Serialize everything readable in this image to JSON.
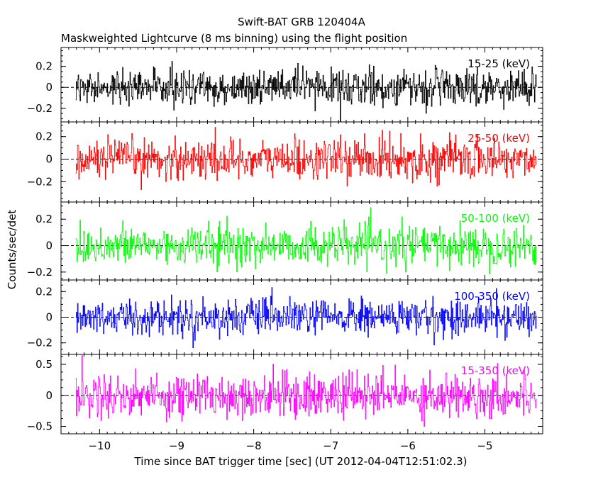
{
  "figure": {
    "title": "Swift-BAT GRB 120404A",
    "subtitle": "Maskweighted Lightcurve (8 ms binning) using the flight position",
    "ylabel": "Counts/sec/det",
    "xlabel": "Time since BAT trigger time [sec] (UT 2012-04-04T12:51:02.3)"
  },
  "chart_data": [
    {
      "type": "line",
      "series": [
        {
          "name": "15-25 (keV)",
          "color": "#000000"
        }
      ],
      "x_range": [
        -10.31,
        -4.33
      ],
      "bin_width": 0.008,
      "xlim": [
        -10.5,
        -4.25
      ],
      "ylim": [
        -0.33,
        0.38
      ],
      "yticks": [
        -0.2,
        0,
        0.2
      ],
      "ytick_labels": [
        "−0.2",
        "0",
        "0.2"
      ],
      "noise_sigma": 0.085,
      "baseline": 0
    },
    {
      "type": "line",
      "series": [
        {
          "name": "25-50 (keV)",
          "color": "#ff0000"
        }
      ],
      "x_range": [
        -10.31,
        -4.33
      ],
      "bin_width": 0.008,
      "xlim": [
        -10.5,
        -4.25
      ],
      "ylim": [
        -0.38,
        0.33
      ],
      "yticks": [
        -0.2,
        0,
        0.2
      ],
      "ytick_labels": [
        "−0.2",
        "0",
        "0.2"
      ],
      "noise_sigma": 0.09,
      "baseline": 0
    },
    {
      "type": "line",
      "series": [
        {
          "name": "50-100 (keV)",
          "color": "#00ff00"
        }
      ],
      "x_range": [
        -10.31,
        -4.33
      ],
      "bin_width": 0.008,
      "xlim": [
        -10.5,
        -4.25
      ],
      "ylim": [
        -0.26,
        0.33
      ],
      "yticks": [
        -0.2,
        0,
        0.2
      ],
      "ytick_labels": [
        "−0.2",
        "0",
        "0.2"
      ],
      "noise_sigma": 0.075,
      "baseline": 0
    },
    {
      "type": "line",
      "series": [
        {
          "name": "100-350 (keV)",
          "color": "#0000ff"
        }
      ],
      "x_range": [
        -10.31,
        -4.33
      ],
      "bin_width": 0.008,
      "xlim": [
        -10.5,
        -4.25
      ],
      "ylim": [
        -0.29,
        0.29
      ],
      "yticks": [
        -0.2,
        0,
        0.2
      ],
      "ytick_labels": [
        "−0.2",
        "0",
        "0.2"
      ],
      "noise_sigma": 0.07,
      "baseline": 0
    },
    {
      "type": "line",
      "series": [
        {
          "name": "15-350 (keV)",
          "color": "#ff00ff"
        }
      ],
      "x_range": [
        -10.31,
        -4.33
      ],
      "bin_width": 0.008,
      "xlim": [
        -10.5,
        -4.25
      ],
      "ylim": [
        -0.62,
        0.66
      ],
      "yticks": [
        -0.5,
        0,
        0.5
      ],
      "ytick_labels": [
        "−0.5",
        "0",
        "0.5"
      ],
      "noise_sigma": 0.18,
      "baseline": 0
    }
  ],
  "x_axis": {
    "ticks": [
      -10,
      -9,
      -8,
      -7,
      -6,
      -5
    ],
    "tick_labels": [
      "−10",
      "−9",
      "−8",
      "−7",
      "−6",
      "−5"
    ]
  }
}
